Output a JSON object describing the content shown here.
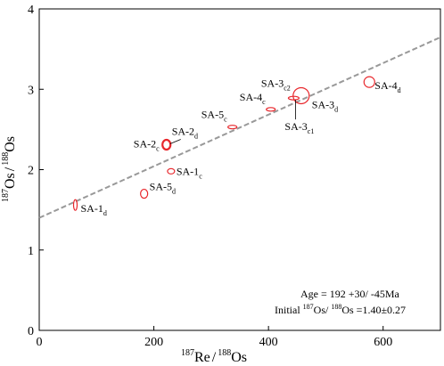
{
  "chart_data": {
    "type": "scatter",
    "xlabel": {
      "iso_num": "187",
      "el_num": "Re",
      "iso_den": "188",
      "el_den": "Os"
    },
    "ylabel": {
      "iso_num": "187",
      "el_num": "Os",
      "iso_den": "188",
      "el_den": "Os"
    },
    "xlim": [
      0,
      700
    ],
    "ylim": [
      0,
      4
    ],
    "x_ticks": [
      "0",
      "200",
      "400",
      "600"
    ],
    "y_ticks": [
      "0",
      "1",
      "2",
      "3",
      "4"
    ],
    "regression_line": {
      "style": "dashed",
      "color": "#999999",
      "intercept": 1.4,
      "slope": 0.00321
    },
    "points": [
      {
        "name": "SA-1",
        "sub": "d",
        "x": 63,
        "y": 1.56,
        "rx": 2,
        "ry": 6,
        "label": "SA-1",
        "label_sub": "d",
        "label_pos": "right-below"
      },
      {
        "name": "SA-5",
        "sub": "d",
        "x": 183,
        "y": 1.7,
        "rx": 4,
        "ry": 5,
        "label": "SA-5",
        "label_sub": "d",
        "label_pos": "upper-right"
      },
      {
        "name": "SA-1",
        "sub": "c",
        "x": 230,
        "y": 1.98,
        "rx": 4,
        "ry": 3,
        "label": "SA-1",
        "label_sub": "c",
        "label_pos": "right"
      },
      {
        "name": "SA-2",
        "sub": "c",
        "x": 222,
        "y": 2.31,
        "rx": 5,
        "ry": 6,
        "label": "SA-2",
        "label_sub": "c",
        "label_pos": "left"
      },
      {
        "name": "SA-2",
        "sub": "d",
        "x": 222,
        "y": 2.31,
        "rx": 4,
        "ry": 5,
        "label": "SA-2",
        "label_sub": "d",
        "label_pos": "upper-right-leader"
      },
      {
        "name": "SA-5",
        "sub": "c",
        "x": 337,
        "y": 2.53,
        "rx": 5,
        "ry": 2,
        "label": "SA-5",
        "label_sub": "c",
        "label_pos": "upper-left"
      },
      {
        "name": "SA-4",
        "sub": "c",
        "x": 404,
        "y": 2.75,
        "rx": 5,
        "ry": 2,
        "label": "SA-4",
        "label_sub": "c",
        "label_pos": "upper-left"
      },
      {
        "name": "SA-3",
        "sub": "c1",
        "x": 444,
        "y": 2.89,
        "rx": 6,
        "ry": 2,
        "label": "SA-3",
        "label_sub": "c1",
        "label_pos": "below-leader"
      },
      {
        "name": "SA-3",
        "sub": "c2",
        "x": 457,
        "y": 2.92,
        "rx": 9,
        "ry": 9,
        "label": "SA-3",
        "label_sub": "c2",
        "label_pos": "upper-left"
      },
      {
        "name": "SA-3",
        "sub": "d",
        "x": 457,
        "y": 2.92,
        "rx": 0,
        "ry": 0,
        "label": "SA-3",
        "label_sub": "d",
        "label_pos": "right"
      },
      {
        "name": "SA-4",
        "sub": "d",
        "x": 576,
        "y": 3.09,
        "rx": 6,
        "ry": 6,
        "label": "SA-4",
        "label_sub": "d",
        "label_pos": "right-below"
      }
    ],
    "marker_color": "#e8262b",
    "annotation": {
      "age": "Age = 192  +30/  -45Ma",
      "initial_prefix": "Initial ",
      "initial_iso_num": "187",
      "initial_el_num": "Os/ ",
      "initial_iso_den": "188",
      "initial_el_den": "Os =1.40±0.27"
    }
  }
}
